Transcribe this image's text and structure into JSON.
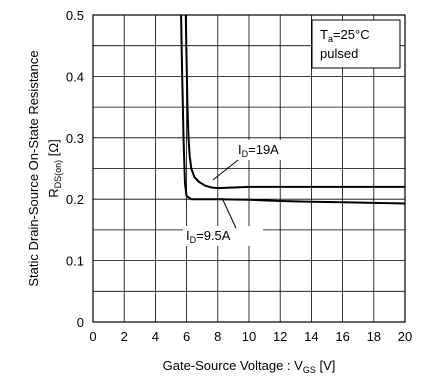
{
  "chart_data": {
    "type": "line",
    "xlabel": {
      "main": "Gate-Source Voltage : V",
      "sub": "GS",
      "unit": " [V]"
    },
    "ylabel": {
      "line1": "Static Drain-Source On-State Resistance",
      "line2_main": "R",
      "line2_sub": "DS(on)",
      "line2_unit": " [Ω]"
    },
    "xlim": [
      0,
      20
    ],
    "ylim": [
      0,
      0.5
    ],
    "x_ticks": [
      "0",
      "2",
      "4",
      "6",
      "8",
      "10",
      "12",
      "14",
      "16",
      "18",
      "20"
    ],
    "y_ticks": [
      "0",
      "0.1",
      "0.2",
      "0.3",
      "0.4",
      "0.5"
    ],
    "grid": true,
    "legend_box": {
      "line1_main": "T",
      "line1_sub": "a",
      "line1_rest": "=25°C",
      "line2": "pulsed"
    },
    "series": [
      {
        "name": "I_D=9.5A",
        "label_main": "I",
        "label_sub": "D",
        "label_rest": "=9.5A",
        "x": [
          5.65,
          5.68,
          5.72,
          5.76,
          5.8,
          5.85,
          5.9,
          6.0,
          6.3,
          7,
          8,
          10,
          12,
          14,
          16,
          18,
          20
        ],
        "y": [
          0.5,
          0.45,
          0.4,
          0.35,
          0.3,
          0.26,
          0.225,
          0.205,
          0.2,
          0.2,
          0.2,
          0.199,
          0.197,
          0.196,
          0.195,
          0.194,
          0.193
        ]
      },
      {
        "name": "I_D=19A",
        "label_main": "I",
        "label_sub": "D",
        "label_rest": "=19A",
        "x": [
          5.95,
          5.98,
          6.02,
          6.06,
          6.12,
          6.2,
          6.3,
          6.5,
          6.8,
          7.2,
          7.6,
          8,
          9,
          10,
          12,
          14,
          16,
          18,
          20
        ],
        "y": [
          0.5,
          0.45,
          0.4,
          0.35,
          0.3,
          0.27,
          0.25,
          0.236,
          0.228,
          0.222,
          0.219,
          0.218,
          0.219,
          0.22,
          0.22,
          0.22,
          0.22,
          0.22,
          0.22
        ]
      }
    ]
  }
}
